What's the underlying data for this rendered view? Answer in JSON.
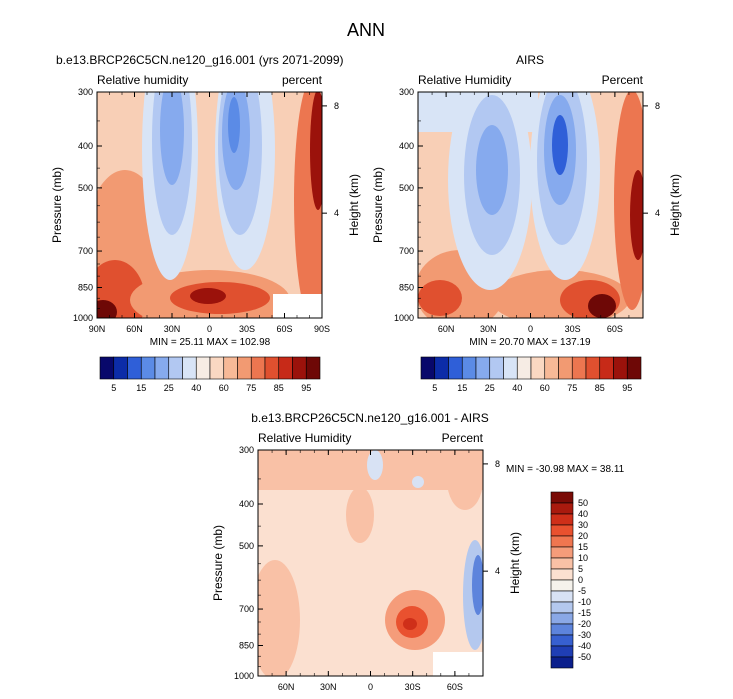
{
  "figure": {
    "title": "ANN"
  },
  "chart_data": [
    {
      "type": "heatmap",
      "title": "b.e13.BRCP26C5CN.ne120_g16.001 (yrs 2071-2099)",
      "left_label": "Relative humidity",
      "right_label": "percent",
      "ylabel": "Pressure (mb)",
      "y2label": "Height (km)",
      "y_ticks": [
        300,
        400,
        500,
        700,
        850,
        1000
      ],
      "y2_ticks": [
        8,
        4
      ],
      "x_ticks": [
        "90N",
        "60N",
        "30N",
        "0",
        "30S",
        "60S",
        "90S"
      ],
      "stats_text": "MIN = 25.11   MAX = 102.98",
      "min": 25.11,
      "max": 102.98,
      "colorbar_labels": [
        "5",
        "15",
        "25",
        "40",
        "60",
        "75",
        "85",
        "95"
      ]
    },
    {
      "type": "heatmap",
      "title": "AIRS",
      "left_label": "Relative Humidity",
      "right_label": "Percent",
      "ylabel": "Pressure (mb)",
      "y2label": "Height (km)",
      "y_ticks": [
        300,
        400,
        500,
        700,
        850,
        1000
      ],
      "y2_ticks": [
        8,
        4
      ],
      "x_ticks": [
        "60N",
        "30N",
        "0",
        "30S",
        "60S"
      ],
      "stats_text": "MIN = 20.70   MAX = 137.19",
      "min": 20.7,
      "max": 137.19,
      "colorbar_labels": [
        "5",
        "15",
        "25",
        "40",
        "60",
        "75",
        "85",
        "95"
      ]
    },
    {
      "type": "heatmap",
      "title": "b.e13.BRCP26C5CN.ne120_g16.001 - AIRS",
      "left_label": "Relative Humidity",
      "right_label": "Percent",
      "ylabel": "Pressure (mb)",
      "y2label": "Height (km)",
      "y_ticks": [
        300,
        400,
        500,
        700,
        850,
        1000
      ],
      "y2_ticks": [
        8,
        4
      ],
      "x_ticks": [
        "60N",
        "30N",
        "0",
        "30S",
        "60S"
      ],
      "stats_text": "MIN = -30.98   MAX = 38.11",
      "min": -30.98,
      "max": 38.11,
      "colorbar_labels": [
        "50",
        "40",
        "30",
        "20",
        "15",
        "10",
        "5",
        "0",
        "-5",
        "-10",
        "-15",
        "-20",
        "-30",
        "-40",
        "-50"
      ]
    }
  ],
  "palettes": {
    "abs": [
      "#08086b",
      "#0c2ca8",
      "#2f5fd8",
      "#5b8be6",
      "#86aaee",
      "#b2c8f2",
      "#d8e4f6",
      "#f6ece4",
      "#fad8c2",
      "#f7b997",
      "#f29a72",
      "#ec7650",
      "#e0502f",
      "#c72a18",
      "#9b120b",
      "#6e0806"
    ],
    "diff": [
      "#7a0b06",
      "#a91a0e",
      "#cf2f19",
      "#e9512f",
      "#f07650",
      "#f59c7a",
      "#f9c1a6",
      "#fbe0d0",
      "#f5f2ec",
      "#d8e2f4",
      "#b4c8ee",
      "#8aa8e6",
      "#5d84dc",
      "#3760d0",
      "#1f3eb4",
      "#0b1f8c"
    ]
  }
}
